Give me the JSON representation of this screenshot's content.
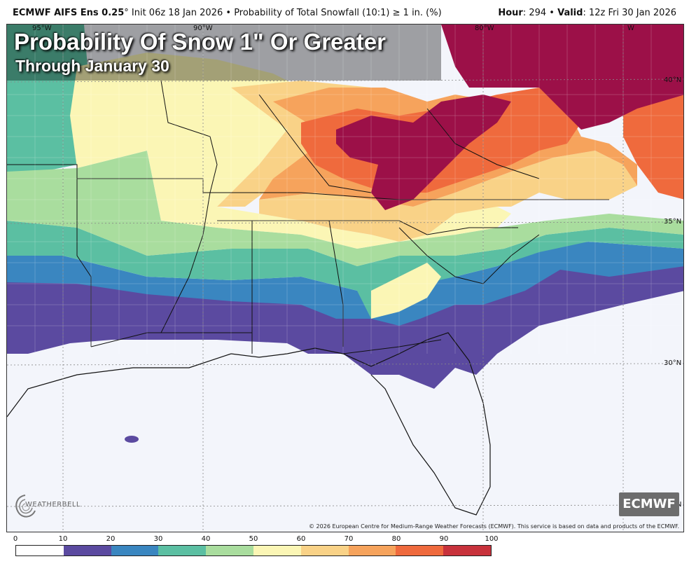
{
  "header": {
    "model": "ECMWF AIFS Ens 0.25",
    "degree": "°",
    "init": "Init 06z 18 Jan 2026",
    "separator": "•",
    "product": "Probability of Total Snowfall (10:1) ≥ 1 in. (%)",
    "hour_label": "Hour",
    "hour_value": ": 294",
    "valid_label": "Valid",
    "valid_value": ": 12z Fri 30 Jan 2026"
  },
  "map": {
    "title": "Probability Of Snow 1\" Or Greater",
    "subtitle": "Through January 30",
    "lat_labels": [
      "40°N",
      "35°N",
      "30°N",
      "N"
    ],
    "lon_labels": [
      "95°W",
      "90°W",
      "80°W",
      "W"
    ],
    "logo_text": "WEATHERBELL",
    "badge": "ECMWF",
    "copyright": "© 2026 European Centre for Medium-Range Weather Forecasts (ECMWF). This service is based on data and products of the ECMWF."
  },
  "legend": {
    "ticks": [
      "0",
      "10",
      "20",
      "30",
      "40",
      "50",
      "60",
      "70",
      "80",
      "90",
      "100"
    ],
    "colors": [
      "#ffffff",
      "#5b4aa0",
      "#3a86c0",
      "#5bbfa2",
      "#a9dd9e",
      "#fbf6b5",
      "#f9d287",
      "#f6a35c",
      "#ef6a3d",
      "#c8323c"
    ],
    "extra_color": "#9c1048"
  }
}
